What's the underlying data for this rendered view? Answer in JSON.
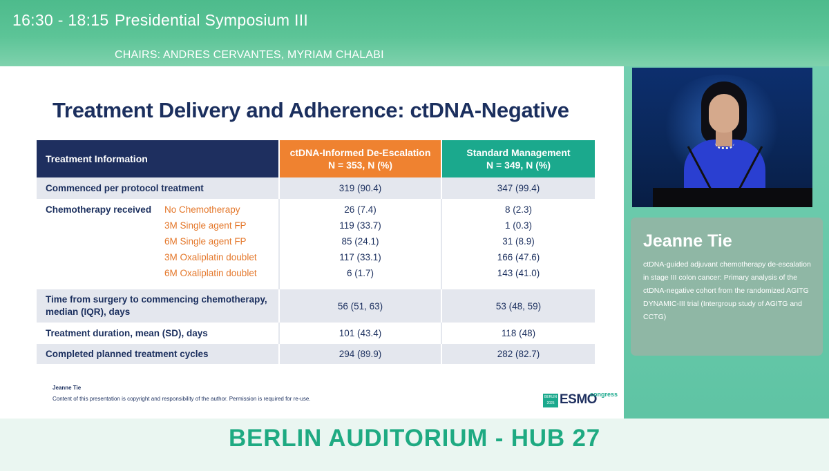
{
  "session": {
    "time": "16:30 - 18:15",
    "title": "Presidential Symposium III",
    "chairs": "CHAIRS: ANDRES CERVANTES, MYRIAM CHALABI"
  },
  "slide": {
    "title": "Treatment Delivery and Adherence: ctDNA-Negative",
    "table": {
      "headers": {
        "info": "Treatment Information",
        "de_line1": "ctDNA-Informed De-Escalation",
        "de_line2": "N = 353, N (%)",
        "std_line1": "Standard Management",
        "std_line2": "N = 349, N (%)"
      },
      "commenced": {
        "label": "Commenced per protocol treatment",
        "de": "319 (90.4)",
        "std": "347 (99.4)"
      },
      "chemo": {
        "label": "Chemotherapy received",
        "rows": [
          {
            "label": "No Chemotherapy",
            "de": "26 (7.4)",
            "std": "8 (2.3)"
          },
          {
            "label": "3M Single agent FP",
            "de": "119 (33.7)",
            "std": "1 (0.3)"
          },
          {
            "label": "6M Single agent FP",
            "de": "85 (24.1)",
            "std": "31 (8.9)"
          },
          {
            "label": "3M Oxaliplatin doublet",
            "de": "117 (33.1)",
            "std": "166 (47.6)"
          },
          {
            "label": "6M Oxaliplatin doublet",
            "de": "6 (1.7)",
            "std": "143 (41.0)"
          }
        ]
      },
      "time_to_chemo": {
        "label_line1": "Time from surgery to commencing chemotherapy,",
        "label_line2": "median (IQR), days",
        "de": "56 (51, 63)",
        "std": "53 (48, 59)"
      },
      "duration": {
        "label": "Treatment duration, mean (SD), days",
        "de": "101 (43.4)",
        "std": "118 (48)"
      },
      "completed": {
        "label": "Completed planned treatment cycles",
        "de": "294 (89.9)",
        "std": "282 (82.7)"
      }
    },
    "footer_author": "Jeanne Tie",
    "footer_copyright": "Content of this presentation is copyright and responsibility of the author. Permission is required for re-use.",
    "logo": {
      "city_line1": "BERLIN",
      "city_line2": "2025",
      "word": "ESMO",
      "suffix": "congress"
    }
  },
  "speaker": {
    "name": "Jeanne Tie",
    "talk_title": "ctDNA-guided adjuvant chemotherapy de-escalation in stage III colon cancer: Primary analysis of the ctDNA-negative cohort from the randomized AGITG DYNAMIC-III trial (Intergroup study of AGITG and CCTG)"
  },
  "room": "BERLIN AUDITORIUM - HUB 27",
  "colors": {
    "header_green": "#5cc497",
    "navy": "#1e2f5f",
    "orange": "#ef8230",
    "teal": "#1ba98d",
    "room_text": "#1eaa82"
  }
}
